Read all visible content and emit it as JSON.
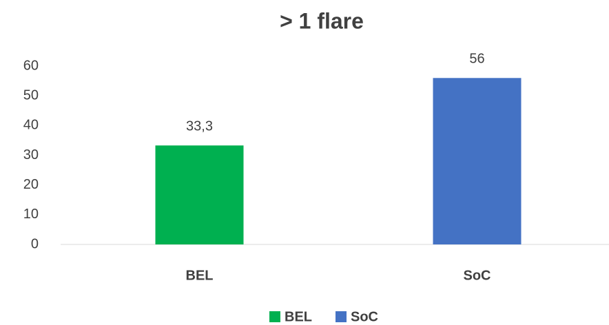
{
  "chart_data": {
    "type": "bar",
    "title": "> 1 flare",
    "categories": [
      "BEL",
      "SoC"
    ],
    "values": [
      33.3,
      56
    ],
    "value_labels": [
      "33,3",
      "56"
    ],
    "colors": [
      "#00b050",
      "#4472c4"
    ],
    "ylim": [
      0,
      60
    ],
    "yticks": [
      0,
      10,
      20,
      30,
      40,
      50,
      60
    ],
    "grid": false,
    "legend": "bottom"
  }
}
